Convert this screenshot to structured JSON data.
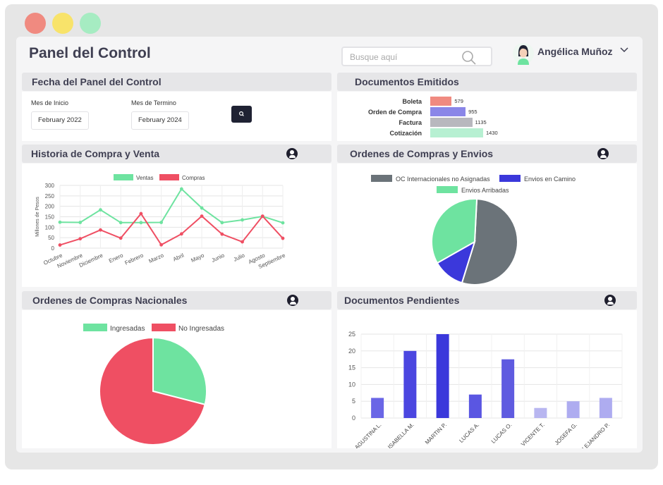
{
  "app": {
    "title": "Panel del Control"
  },
  "search": {
    "placeholder": "Busque aquí"
  },
  "user": {
    "name": "Angélica Muñoz"
  },
  "date_panel": {
    "title": "Fecha del Panel del Control",
    "start_label": "Mes de Inicio",
    "start_value": "February 2022",
    "end_label": "Mes de Termino",
    "end_value": "February 2024"
  },
  "documents_emitted": {
    "title": "Documentos Emitidos",
    "items": [
      {
        "label": "Boleta",
        "value": "579",
        "color": "#f08a80"
      },
      {
        "label": "Orden de Compra",
        "value": "955",
        "color": "#8a86e8"
      },
      {
        "label": "Factura",
        "value": "1135",
        "color": "#b8b8be"
      },
      {
        "label": "Cotización",
        "value": "1430",
        "color": "#b7f0d2"
      }
    ]
  },
  "history": {
    "title": "Historia de  Compra y Venta"
  },
  "orders_envios": {
    "title": "Ordenes de Compras y Envios"
  },
  "orders_nacionales": {
    "title": "Ordenes de Compras Nacionales"
  },
  "docs_pending": {
    "title": "Documentos Pendientes"
  },
  "colors": {
    "green": "#6ee3a0",
    "red": "#ef4f63",
    "gray": "#6b7379",
    "blue": "#3b38db",
    "dark": "#1f2233"
  },
  "chart_data": [
    {
      "type": "line",
      "ylabel": "Millones de Pesos",
      "ylim": [
        0,
        300
      ],
      "yticks": [
        0,
        50,
        100,
        150,
        200,
        250,
        300
      ],
      "categories": [
        "Octubre",
        "Noviembre",
        "Diciembre",
        "Enero",
        "Febrero",
        "Marzo",
        "Abril",
        "Mayo",
        "Junio",
        "Julio",
        "Agosto",
        "Septiembre"
      ],
      "series": [
        {
          "name": "Ventas",
          "color": "#6ee3a0",
          "values": [
            124,
            123,
            183,
            122,
            122,
            123,
            283,
            192,
            122,
            135,
            152,
            121
          ]
        },
        {
          "name": "Compras",
          "color": "#ef4f63",
          "values": [
            15,
            45,
            87,
            48,
            165,
            16,
            68,
            153,
            67,
            30,
            153,
            47
          ]
        }
      ],
      "legend": "top",
      "grid": true
    },
    {
      "type": "pie",
      "slices": [
        {
          "name": "OC Internacionales no Asignadas",
          "value": 54,
          "color": "#6b7379"
        },
        {
          "name": "Envios en Camino",
          "value": 12,
          "color": "#3b38db"
        },
        {
          "name": "Envios Arribadas",
          "value": 34,
          "color": "#6ee3a0"
        }
      ],
      "legend": "top"
    },
    {
      "type": "pie",
      "slices": [
        {
          "name": "Ingresadas",
          "value": 29,
          "color": "#6ee3a0"
        },
        {
          "name": "No Ingresadas",
          "value": 71,
          "color": "#ef4f63"
        }
      ],
      "legend": "top"
    },
    {
      "type": "bar",
      "ylim": [
        0,
        25
      ],
      "yticks": [
        0,
        5,
        10,
        15,
        20,
        25
      ],
      "categories": [
        "AGUSTINA L.",
        "ISABELLA M.",
        "MARTIN P.",
        "LUCAS A.",
        "LUCAS O.",
        "VICENTE T.",
        "JOSEFA G.",
        "ALEJANDRO P."
      ],
      "series": [
        {
          "name": "",
          "color": "#7070e0",
          "values": [
            6,
            20,
            25,
            7,
            17.5,
            3,
            5,
            6
          ]
        }
      ],
      "grid": true
    }
  ]
}
